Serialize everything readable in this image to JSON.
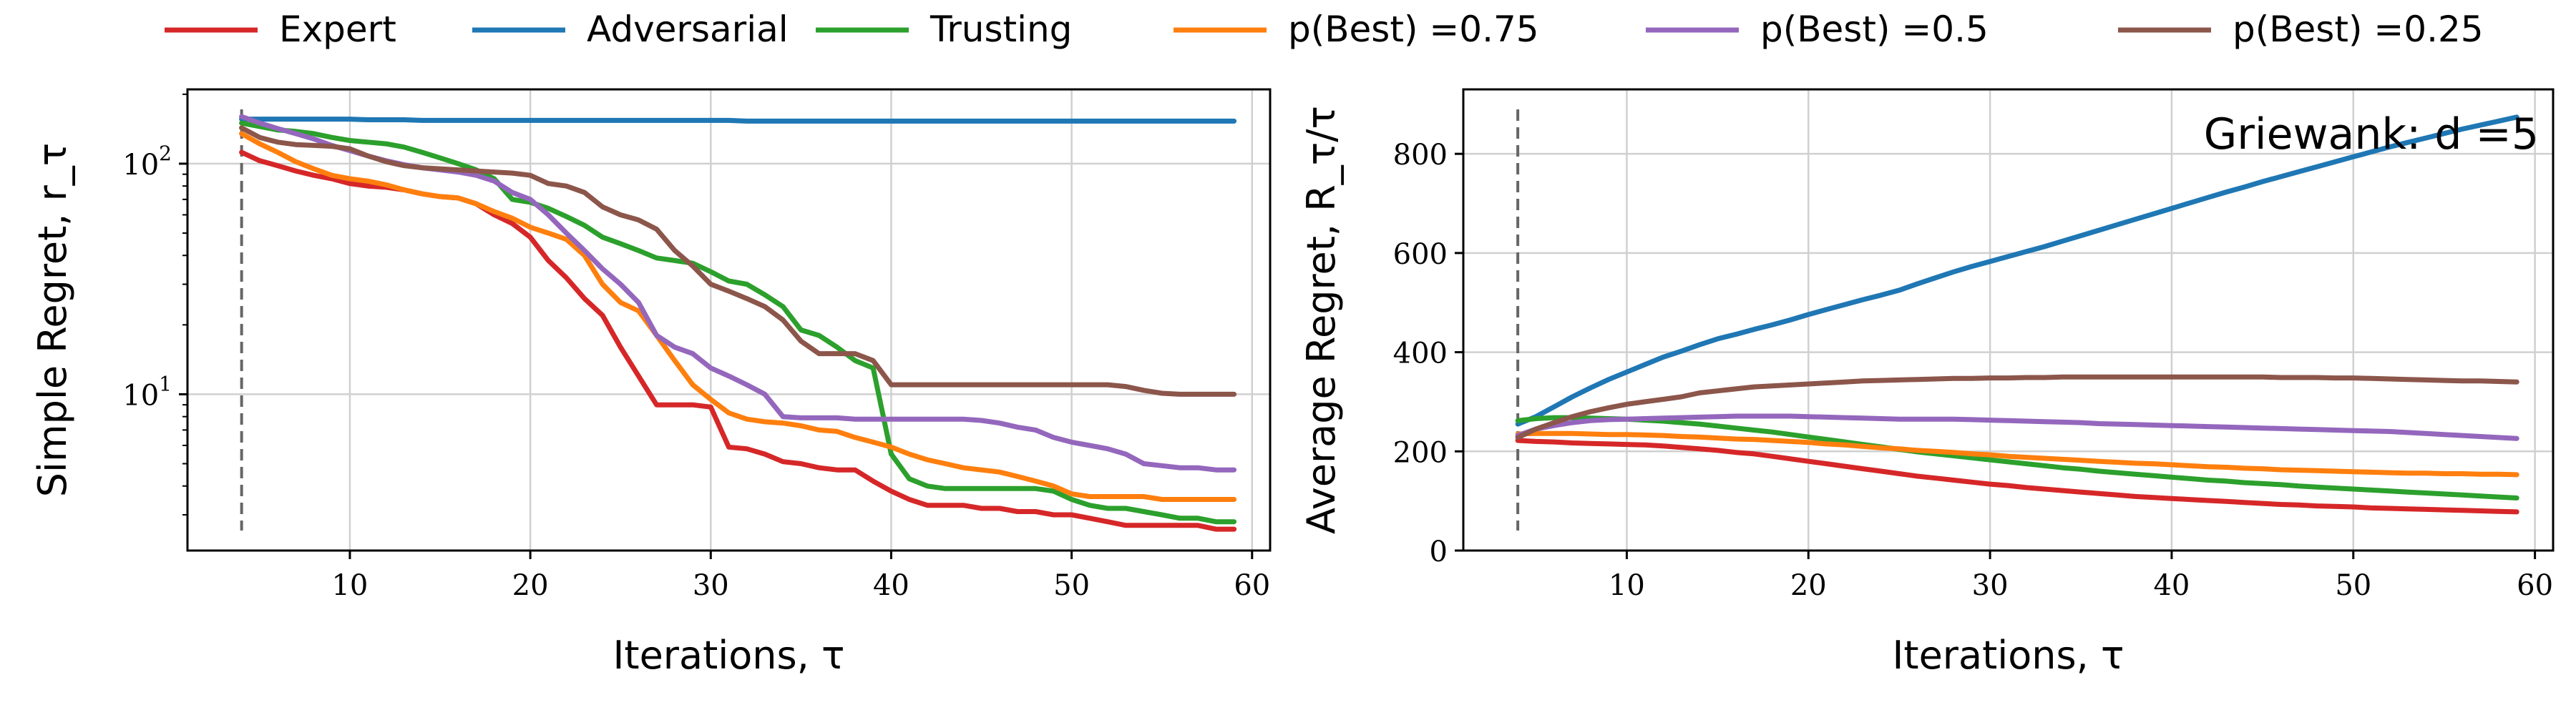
{
  "legend": {
    "placement": "top",
    "entries": [
      {
        "label": "Expert",
        "color": "#d62728"
      },
      {
        "label": "Adversarial",
        "color": "#1f77b4"
      },
      {
        "label": "Trusting",
        "color": "#2ca02c"
      },
      {
        "label": "p(Best) =0.75",
        "color": "#ff7f0e"
      },
      {
        "label": "p(Best) =0.5",
        "color": "#9467bd"
      },
      {
        "label": "p(Best) =0.25",
        "color": "#8c564b"
      }
    ]
  },
  "chart_data": [
    {
      "type": "line",
      "xlabel": "Iterations, τ",
      "ylabel": "Simple Regret, r_τ",
      "yscale": "log",
      "xlim": [
        1,
        61
      ],
      "ylim": [
        2.1,
        210
      ],
      "xticks": [
        10,
        20,
        30,
        40,
        50,
        60
      ],
      "yticks": [
        {
          "value": 10,
          "label": "10^1"
        },
        {
          "value": 100,
          "label": "10^2"
        }
      ],
      "grid": true,
      "vline_x": 4,
      "x": [
        4,
        5,
        6,
        7,
        8,
        9,
        10,
        11,
        12,
        13,
        14,
        15,
        16,
        17,
        18,
        19,
        20,
        21,
        22,
        23,
        24,
        25,
        26,
        27,
        28,
        29,
        30,
        31,
        32,
        33,
        34,
        35,
        36,
        37,
        38,
        39,
        40,
        41,
        42,
        43,
        44,
        45,
        46,
        47,
        48,
        49,
        50,
        51,
        52,
        53,
        54,
        55,
        56,
        57,
        58,
        59
      ],
      "series": [
        {
          "name": "Expert",
          "color": "#d62728",
          "values": [
            112,
            103,
            98,
            93,
            89,
            86,
            82,
            80,
            79,
            77,
            74,
            72,
            71,
            67,
            60,
            55,
            48,
            38,
            32,
            26,
            22,
            16,
            12,
            9.0,
            9.0,
            9.0,
            8.8,
            5.9,
            5.8,
            5.5,
            5.1,
            5.0,
            4.8,
            4.7,
            4.7,
            4.2,
            3.8,
            3.5,
            3.3,
            3.3,
            3.3,
            3.2,
            3.2,
            3.1,
            3.1,
            3.0,
            3.0,
            2.9,
            2.8,
            2.7,
            2.7,
            2.7,
            2.7,
            2.7,
            2.6,
            2.6
          ]
        },
        {
          "name": "Adversarial",
          "color": "#1f77b4",
          "values": [
            156,
            156,
            156,
            156,
            156,
            156,
            156,
            155,
            155,
            155,
            154,
            154,
            154,
            154,
            154,
            154,
            154,
            154,
            154,
            154,
            154,
            154,
            154,
            154,
            154,
            154,
            154,
            154,
            153,
            153,
            153,
            153,
            153,
            153,
            153,
            153,
            153,
            153,
            153,
            153,
            153,
            153,
            153,
            153,
            153,
            153,
            153,
            153,
            153,
            153,
            153,
            153,
            153,
            153,
            153,
            153
          ]
        },
        {
          "name": "Trusting",
          "color": "#2ca02c",
          "values": [
            150,
            145,
            140,
            138,
            135,
            130,
            126,
            124,
            122,
            118,
            112,
            106,
            100,
            94,
            86,
            70,
            68,
            64,
            59,
            54,
            48,
            45,
            42,
            39,
            38,
            37,
            34,
            31,
            30,
            27,
            24,
            19,
            18,
            16,
            14,
            13,
            5.5,
            4.3,
            4.0,
            3.9,
            3.9,
            3.9,
            3.9,
            3.9,
            3.9,
            3.8,
            3.5,
            3.3,
            3.2,
            3.2,
            3.1,
            3.0,
            2.9,
            2.9,
            2.8,
            2.8
          ]
        },
        {
          "name": "p(Best) =0.75",
          "color": "#ff7f0e",
          "values": [
            135,
            122,
            112,
            102,
            95,
            89,
            86,
            84,
            81,
            77,
            74,
            72,
            71,
            67,
            62,
            58,
            53,
            50,
            47,
            40,
            30,
            25,
            23,
            18,
            14,
            11,
            9.5,
            8.3,
            7.8,
            7.6,
            7.5,
            7.3,
            7.0,
            6.9,
            6.5,
            6.2,
            5.9,
            5.5,
            5.2,
            5.0,
            4.8,
            4.7,
            4.6,
            4.4,
            4.2,
            4.0,
            3.7,
            3.6,
            3.6,
            3.6,
            3.6,
            3.5,
            3.5,
            3.5,
            3.5,
            3.5
          ]
        },
        {
          "name": "p(Best) =0.5",
          "color": "#9467bd",
          "values": [
            160,
            150,
            142,
            135,
            128,
            120,
            114,
            108,
            103,
            99,
            96,
            94,
            92,
            89,
            84,
            75,
            70,
            60,
            50,
            42,
            35,
            30,
            25,
            18,
            16,
            15,
            13,
            12,
            11,
            10,
            8.0,
            7.9,
            7.9,
            7.9,
            7.8,
            7.8,
            7.8,
            7.8,
            7.8,
            7.8,
            7.8,
            7.7,
            7.5,
            7.2,
            7.0,
            6.5,
            6.2,
            6.0,
            5.8,
            5.5,
            5.0,
            4.9,
            4.8,
            4.8,
            4.7,
            4.7
          ]
        },
        {
          "name": "p(Best) =0.25",
          "color": "#8c564b",
          "values": [
            143,
            130,
            124,
            121,
            120,
            119,
            116,
            108,
            102,
            98,
            96,
            95,
            94,
            93,
            92,
            91,
            89,
            82,
            80,
            75,
            65,
            60,
            57,
            52,
            42,
            36,
            30,
            28,
            26,
            24,
            21,
            17,
            15,
            15,
            15,
            14,
            11,
            11,
            11,
            11,
            11,
            11,
            11,
            11,
            11,
            11,
            11,
            11,
            11,
            10.8,
            10.4,
            10.1,
            10,
            10,
            10,
            10
          ]
        }
      ]
    },
    {
      "type": "line",
      "xlabel": "Iterations, τ",
      "ylabel": "Average Regret, R_τ/τ",
      "yscale": "linear",
      "xlim": [
        1,
        61
      ],
      "ylim": [
        0,
        930
      ],
      "xticks": [
        10,
        20,
        30,
        40,
        50,
        60
      ],
      "yticks": [
        0,
        200,
        400,
        600,
        800
      ],
      "grid": true,
      "vline_x": 4,
      "annotation": "Griewank: d =5",
      "x": [
        4,
        5,
        6,
        7,
        8,
        9,
        10,
        11,
        12,
        13,
        14,
        15,
        16,
        17,
        18,
        19,
        20,
        21,
        22,
        23,
        24,
        25,
        26,
        27,
        28,
        29,
        30,
        31,
        32,
        33,
        34,
        35,
        36,
        37,
        38,
        39,
        40,
        41,
        42,
        43,
        44,
        45,
        46,
        47,
        48,
        49,
        50,
        51,
        52,
        53,
        54,
        55,
        56,
        57,
        58,
        59
      ],
      "series": [
        {
          "name": "Expert",
          "color": "#d62728",
          "values": [
            222,
            220,
            219,
            217,
            216,
            215,
            214,
            213,
            211,
            208,
            205,
            202,
            198,
            195,
            190,
            185,
            180,
            175,
            170,
            165,
            160,
            155,
            150,
            146,
            142,
            138,
            134,
            131,
            127,
            124,
            121,
            118,
            115,
            112,
            109,
            107,
            105,
            103,
            101,
            99,
            97,
            95,
            93,
            92,
            90,
            89,
            88,
            86,
            85,
            84,
            83,
            82,
            81,
            80,
            79,
            78
          ]
        },
        {
          "name": "Adversarial",
          "color": "#1f77b4",
          "values": [
            255,
            270,
            290,
            310,
            328,
            345,
            360,
            375,
            390,
            402,
            415,
            427,
            436,
            446,
            455,
            465,
            476,
            486,
            496,
            506,
            515,
            525,
            538,
            550,
            562,
            573,
            583,
            593,
            603,
            613,
            624,
            635,
            646,
            657,
            668,
            679,
            690,
            701,
            712,
            723,
            733,
            744,
            754,
            764,
            774,
            784,
            794,
            804,
            814,
            823,
            832,
            841,
            850,
            858,
            866,
            874
          ]
        },
        {
          "name": "Trusting",
          "color": "#2ca02c",
          "values": [
            262,
            266,
            268,
            268,
            267,
            266,
            265,
            263,
            261,
            258,
            255,
            251,
            247,
            243,
            239,
            234,
            229,
            224,
            219,
            214,
            209,
            204,
            199,
            195,
            191,
            187,
            183,
            179,
            175,
            171,
            167,
            164,
            160,
            157,
            154,
            151,
            148,
            145,
            142,
            140,
            137,
            135,
            133,
            130,
            128,
            126,
            124,
            122,
            120,
            118,
            116,
            114,
            112,
            110,
            108,
            106
          ]
        },
        {
          "name": "p(Best) =0.75",
          "color": "#ff7f0e",
          "values": [
            235,
            236,
            236,
            236,
            235,
            234,
            234,
            233,
            232,
            230,
            229,
            227,
            225,
            224,
            222,
            220,
            218,
            215,
            213,
            210,
            207,
            205,
            202,
            200,
            198,
            195,
            193,
            190,
            188,
            186,
            184,
            182,
            180,
            178,
            176,
            175,
            173,
            171,
            169,
            168,
            166,
            165,
            163,
            162,
            161,
            160,
            159,
            158,
            157,
            156,
            156,
            155,
            155,
            154,
            154,
            153
          ]
        },
        {
          "name": "p(Best) =0.5",
          "color": "#9467bd",
          "values": [
            232,
            245,
            252,
            258,
            262,
            264,
            265,
            266,
            267,
            268,
            269,
            270,
            271,
            271,
            271,
            271,
            270,
            269,
            268,
            267,
            266,
            265,
            265,
            265,
            265,
            264,
            263,
            262,
            261,
            260,
            259,
            258,
            256,
            255,
            254,
            253,
            252,
            251,
            250,
            249,
            248,
            247,
            246,
            245,
            244,
            243,
            242,
            241,
            240,
            238,
            236,
            234,
            232,
            230,
            228,
            226
          ]
        },
        {
          "name": "p(Best) =0.25",
          "color": "#8c564b",
          "values": [
            228,
            245,
            258,
            270,
            280,
            288,
            295,
            300,
            305,
            310,
            318,
            322,
            326,
            330,
            332,
            334,
            336,
            338,
            340,
            342,
            343,
            344,
            345,
            346,
            347,
            347,
            348,
            348,
            349,
            349,
            350,
            350,
            350,
            350,
            350,
            350,
            350,
            350,
            350,
            350,
            350,
            350,
            349,
            349,
            349,
            348,
            348,
            347,
            346,
            345,
            344,
            343,
            342,
            342,
            341,
            340
          ]
        }
      ]
    }
  ]
}
